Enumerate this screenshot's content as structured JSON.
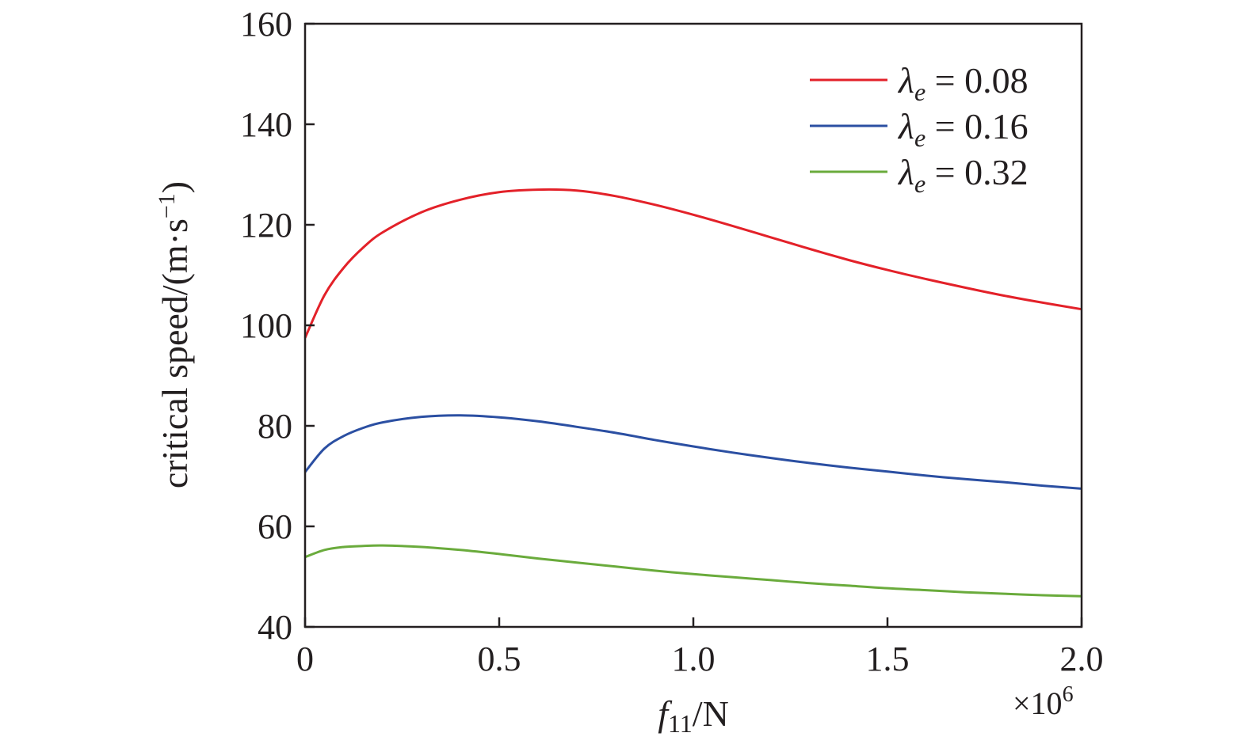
{
  "chart_data": {
    "type": "line",
    "xlabel": {
      "var": "f",
      "sub": "11",
      "unit": "/N"
    },
    "x_multiplier": {
      "base": "×10",
      "exp": "6"
    },
    "ylabel": {
      "main": "critical speed/(m·s",
      "sup": "−1",
      "close": ")"
    },
    "xlim": [
      0,
      2.0
    ],
    "ylim": [
      40,
      160
    ],
    "xticks": [
      0,
      0.5,
      1.0,
      1.5,
      2.0
    ],
    "xtick_labels": [
      "0",
      "0.5",
      "1.0",
      "1.5",
      "2.0"
    ],
    "yticks": [
      40,
      60,
      80,
      100,
      120,
      140,
      160
    ],
    "ytick_labels": [
      "40",
      "60",
      "80",
      "100",
      "120",
      "140",
      "160"
    ],
    "grid": false,
    "legend_position": "top-right",
    "series": [
      {
        "name": "λe = 0.08",
        "legend": {
          "sym": "λ",
          "sub": "e",
          "rest": " = 0.08"
        },
        "color": "#e32129",
        "x": [
          0,
          0.05,
          0.1,
          0.15,
          0.2,
          0.3,
          0.4,
          0.5,
          0.6,
          0.7,
          0.8,
          0.9,
          1.0,
          1.1,
          1.2,
          1.3,
          1.4,
          1.5,
          1.6,
          1.7,
          1.8,
          1.9,
          2.0
        ],
        "y": [
          97.5,
          106,
          111.5,
          115.5,
          118.5,
          122.5,
          125,
          126.5,
          127,
          126.8,
          125.7,
          124,
          122,
          119.8,
          117.5,
          115.2,
          113,
          111,
          109.2,
          107.5,
          105.9,
          104.5,
          103.2
        ]
      },
      {
        "name": "λe = 0.16",
        "legend": {
          "sym": "λ",
          "sub": "e",
          "rest": " = 0.16"
        },
        "color": "#2b4fa2",
        "x": [
          0,
          0.05,
          0.1,
          0.15,
          0.2,
          0.3,
          0.4,
          0.5,
          0.6,
          0.7,
          0.8,
          0.9,
          1.0,
          1.1,
          1.2,
          1.3,
          1.4,
          1.5,
          1.6,
          1.7,
          1.8,
          1.9,
          2.0
        ],
        "y": [
          70.8,
          75.5,
          78,
          79.6,
          80.7,
          81.8,
          82.1,
          81.7,
          80.9,
          79.8,
          78.6,
          77.2,
          75.9,
          74.7,
          73.6,
          72.6,
          71.7,
          70.9,
          70.1,
          69.4,
          68.8,
          68.1,
          67.5
        ]
      },
      {
        "name": "λe = 0.32",
        "legend": {
          "sym": "λ",
          "sub": "e",
          "rest": " = 0.32"
        },
        "color": "#6aab3c",
        "x": [
          0,
          0.05,
          0.1,
          0.15,
          0.2,
          0.3,
          0.4,
          0.5,
          0.6,
          0.7,
          0.8,
          0.9,
          1.0,
          1.1,
          1.2,
          1.3,
          1.4,
          1.5,
          1.6,
          1.7,
          1.8,
          1.9,
          2.0
        ],
        "y": [
          53.9,
          55.3,
          55.9,
          56.1,
          56.2,
          55.9,
          55.3,
          54.5,
          53.6,
          52.8,
          52,
          51.2,
          50.5,
          49.9,
          49.3,
          48.7,
          48.2,
          47.7,
          47.3,
          46.9,
          46.6,
          46.3,
          46.1
        ]
      }
    ]
  }
}
